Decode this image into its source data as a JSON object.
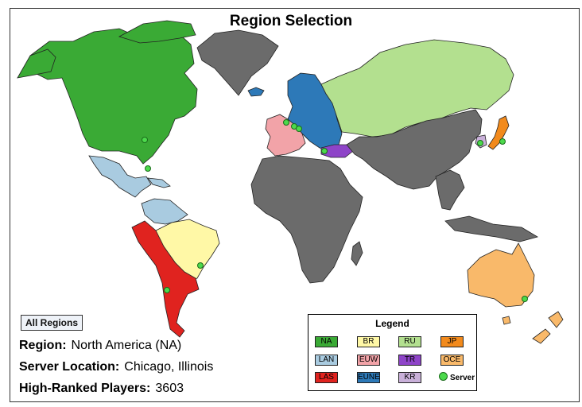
{
  "title": "Region Selection",
  "all_regions_button": "All Regions",
  "info": {
    "region_label": "Region:",
    "region_value": "North America (NA)",
    "server_label": "Server Location:",
    "server_value": "Chicago, Illinois",
    "players_label": "High-Ranked Players:",
    "players_value": "3603"
  },
  "legend": {
    "title": "Legend",
    "items": [
      {
        "code": "NA",
        "color": "#3aaa35"
      },
      {
        "code": "BR",
        "color": "#fff8a6"
      },
      {
        "code": "RU",
        "color": "#b3e08f"
      },
      {
        "code": "JP",
        "color": "#f28a1c"
      },
      {
        "code": "LAN",
        "color": "#a9cbe0"
      },
      {
        "code": "EUW",
        "color": "#f2a3a8"
      },
      {
        "code": "TR",
        "color": "#8e44c8"
      },
      {
        "code": "OCE",
        "color": "#f9b96a"
      },
      {
        "code": "LAS",
        "color": "#e0231f"
      },
      {
        "code": "EUNE",
        "color": "#2d79b8"
      },
      {
        "code": "KR",
        "color": "#c9b0d9"
      }
    ],
    "server_label": "Server"
  },
  "colors": {
    "unassigned": "#6b6b6b",
    "server_dot": "#4cd94c",
    "ocean": "#ffffff"
  }
}
